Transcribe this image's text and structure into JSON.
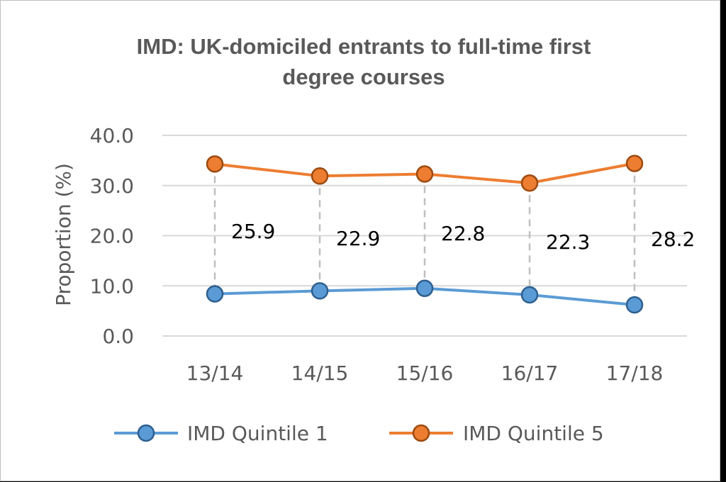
{
  "chart_data": {
    "type": "line",
    "title_lines": [
      "IMD: UK-domiciled entrants to full-time first",
      "degree courses"
    ],
    "ylabel": "Proportion (%)",
    "xlabel": "",
    "categories": [
      "13/14",
      "14/15",
      "15/16",
      "16/17",
      "17/18"
    ],
    "ylim": [
      0,
      40
    ],
    "yticks": [
      "0.0",
      "10.0",
      "20.0",
      "30.0",
      "40.0"
    ],
    "grid": true,
    "legend_position": "bottom",
    "series": [
      {
        "name": "IMD Quintile 1",
        "values": [
          8.4,
          9.0,
          9.5,
          8.2,
          6.2
        ],
        "color": "#5b9bd5",
        "edge": "#2e5f8f"
      },
      {
        "name": "IMD Quintile 5",
        "values": [
          34.3,
          31.9,
          32.3,
          30.5,
          34.4
        ],
        "color": "#ed7d31",
        "edge": "#9c4a10"
      }
    ],
    "gap_labels": [
      "25.9",
      "22.9",
      "22.8",
      "22.3",
      "28.2"
    ],
    "gap_line_color": "#bfbfbf"
  }
}
